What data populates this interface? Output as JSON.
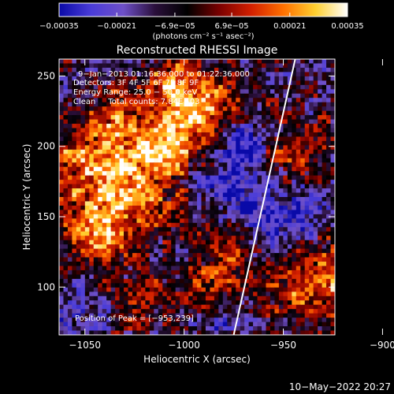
{
  "chart_data": {
    "type": "heatmap",
    "title": "Reconstructed RHESSI Image",
    "xlabel": "Heliocentric X (arcsec)",
    "ylabel": "Heliocentric Y (arcsec)",
    "xlim": [
      -1063,
      -924
    ],
    "ylim": [
      66,
      262
    ],
    "xticks": [
      -1050,
      -1000,
      -950,
      -900
    ],
    "xtick_labels": [
      "−1050",
      "−1000",
      "−950",
      "−900"
    ],
    "yticks": [
      100,
      150,
      200,
      250
    ],
    "ytick_labels": [
      "100",
      "150",
      "200",
      "250"
    ],
    "colorbar": {
      "min": -0.00035,
      "max": 0.00035,
      "colors": [
        "#0a0aa8",
        "#4a3cd8",
        "#6e50c8",
        "#2a0f3a",
        "#000000",
        "#7a0000",
        "#d42000",
        "#ff7000",
        "#ffd030",
        "#ffffff"
      ],
      "tick_values": [
        -0.00035,
        -0.00021,
        -6.9e-05,
        6.9e-05,
        0.00021,
        0.00035
      ],
      "tick_labels": [
        "−0.00035",
        "−0.00021",
        "−6.9e−05",
        "6.9e−05",
        "0.00021",
        "0.00035"
      ],
      "unit_text": "(photons cm⁻² s⁻¹ asec⁻²)"
    },
    "annotations": [
      "9−Jan−2013 01:16:36.000 to 01:22:36.000",
      "Detectors: 3F 4F 5F 6F 7F 8F 9F",
      "Energy Range: 25.0 − 50.0 keV",
      "Clean     Total counts: 7.84E+03"
    ],
    "peak_label": "Position of Peak = [−953,239]",
    "peak_position": [
      -953,
      239
    ],
    "limb_line": [
      [
        -975,
        66
      ],
      [
        -944,
        262
      ]
    ],
    "grid": false
  },
  "footer": {
    "date_stamp": "10−May−2022 20:27"
  }
}
